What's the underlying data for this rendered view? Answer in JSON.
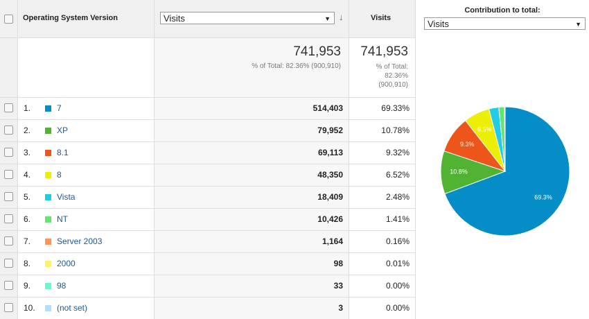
{
  "header": {
    "dimension": "Operating System Version",
    "metric_select": "Visits",
    "metric": "Visits",
    "contribution": "Contribution to total:",
    "contribution_select": "Visits"
  },
  "totals": {
    "value": "741,953",
    "percent": "% of Total: 82.36% (900,910)",
    "value2": "741,953",
    "percent2": [
      "% of Total:",
      "82.36%",
      "(900,910)"
    ]
  },
  "table": {
    "rows": [
      [
        "1.",
        "7",
        "514,403",
        "69.33%"
      ],
      [
        "2.",
        "XP",
        "79,952",
        "10.78%"
      ],
      [
        "3.",
        "8.1",
        "69,113",
        "9.32%"
      ],
      [
        "4.",
        "8",
        "48,350",
        "6.52%"
      ],
      [
        "5.",
        "Vista",
        "18,409",
        "2.48%"
      ],
      [
        "6.",
        "NT",
        "10,426",
        "1.41%"
      ],
      [
        "7.",
        "Server 2003",
        "1,164",
        "0.16%"
      ],
      [
        "8.",
        "2000",
        "98",
        "0.01%"
      ],
      [
        "9.",
        "98",
        "33",
        "0.00%"
      ],
      [
        "10.",
        "(not set)",
        "3",
        "0.00%"
      ]
    ]
  },
  "chart_data": {
    "type": "pie",
    "values": [
      69.33,
      10.78,
      9.32,
      6.52,
      2.48,
      1.41,
      0.16,
      0.01,
      0.0,
      0.0
    ],
    "value_labels": [
      "69.3%",
      "10.8%",
      "9.3%",
      "6.5%",
      null,
      null,
      null,
      null,
      null,
      null
    ],
    "colors": [
      "#058dc7",
      "#50b432",
      "#ed561b",
      "#edef00",
      "#24cbe5",
      "#64e572",
      "#ff9655",
      "#fff263",
      "#6af9c4",
      "#b2deff"
    ]
  }
}
